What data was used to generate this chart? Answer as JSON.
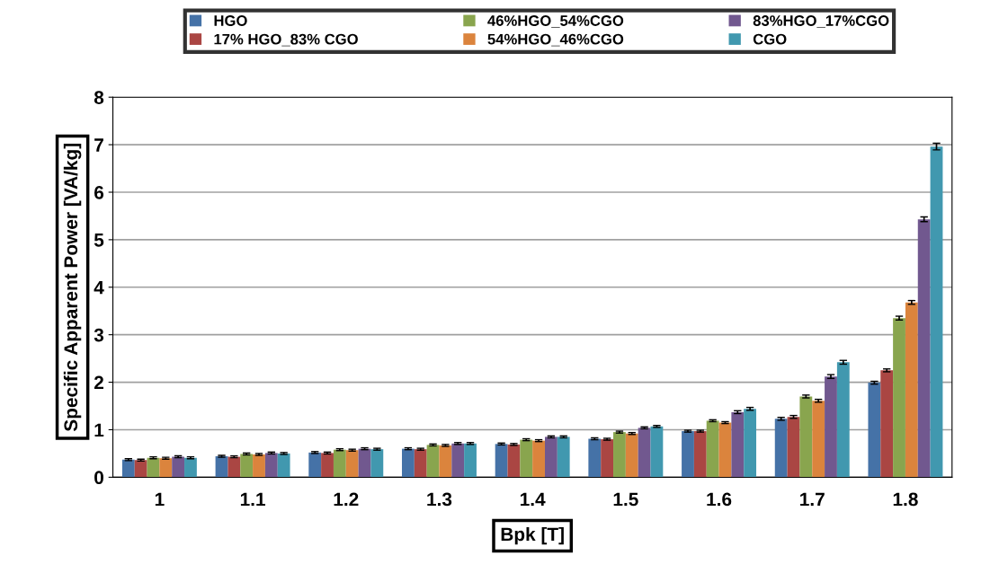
{
  "chart_data": {
    "type": "bar",
    "xlabel": "Bpk [T]",
    "ylabel": "Specific Apparent Power [VA/kg]",
    "categories": [
      "1",
      "1.1",
      "1.2",
      "1.3",
      "1.4",
      "1.5",
      "1.6",
      "1.7",
      "1.8"
    ],
    "series": [
      {
        "name": "HGO",
        "color": "#4572a7",
        "values": [
          0.37,
          0.44,
          0.52,
          0.6,
          0.7,
          0.81,
          0.97,
          1.23,
          1.99
        ],
        "errors": [
          0.02,
          0.02,
          0.02,
          0.02,
          0.02,
          0.02,
          0.02,
          0.03,
          0.03
        ]
      },
      {
        "name": "17% HGO_83% CGO",
        "color": "#aa4643",
        "values": [
          0.36,
          0.43,
          0.51,
          0.59,
          0.69,
          0.8,
          0.97,
          1.27,
          2.25
        ],
        "errors": [
          0.02,
          0.02,
          0.02,
          0.02,
          0.02,
          0.02,
          0.02,
          0.03,
          0.03
        ]
      },
      {
        "name": "46%HGO_54%CGO",
        "color": "#89a54e",
        "values": [
          0.41,
          0.49,
          0.58,
          0.68,
          0.79,
          0.95,
          1.19,
          1.7,
          3.35
        ],
        "errors": [
          0.02,
          0.02,
          0.02,
          0.02,
          0.02,
          0.02,
          0.02,
          0.03,
          0.04
        ]
      },
      {
        "name": "54%HGO_46%CGO",
        "color": "#db843d",
        "values": [
          0.4,
          0.48,
          0.57,
          0.67,
          0.77,
          0.92,
          1.15,
          1.61,
          3.68
        ],
        "errors": [
          0.02,
          0.02,
          0.02,
          0.02,
          0.02,
          0.02,
          0.02,
          0.03,
          0.04
        ]
      },
      {
        "name": "83%HGO_17%CGO",
        "color": "#71588f",
        "values": [
          0.43,
          0.51,
          0.6,
          0.71,
          0.85,
          1.04,
          1.37,
          2.12,
          5.43
        ],
        "errors": [
          0.02,
          0.02,
          0.02,
          0.02,
          0.02,
          0.02,
          0.03,
          0.04,
          0.05
        ]
      },
      {
        "name": "CGO",
        "color": "#4198af",
        "values": [
          0.41,
          0.5,
          0.59,
          0.71,
          0.85,
          1.07,
          1.44,
          2.42,
          6.96
        ],
        "errors": [
          0.02,
          0.02,
          0.02,
          0.02,
          0.02,
          0.02,
          0.03,
          0.04,
          0.07
        ]
      }
    ],
    "ylim": [
      0,
      8
    ],
    "yticks": [
      0,
      1,
      2,
      3,
      4,
      5,
      6,
      7,
      8
    ],
    "grid": "y",
    "legend": "top"
  }
}
